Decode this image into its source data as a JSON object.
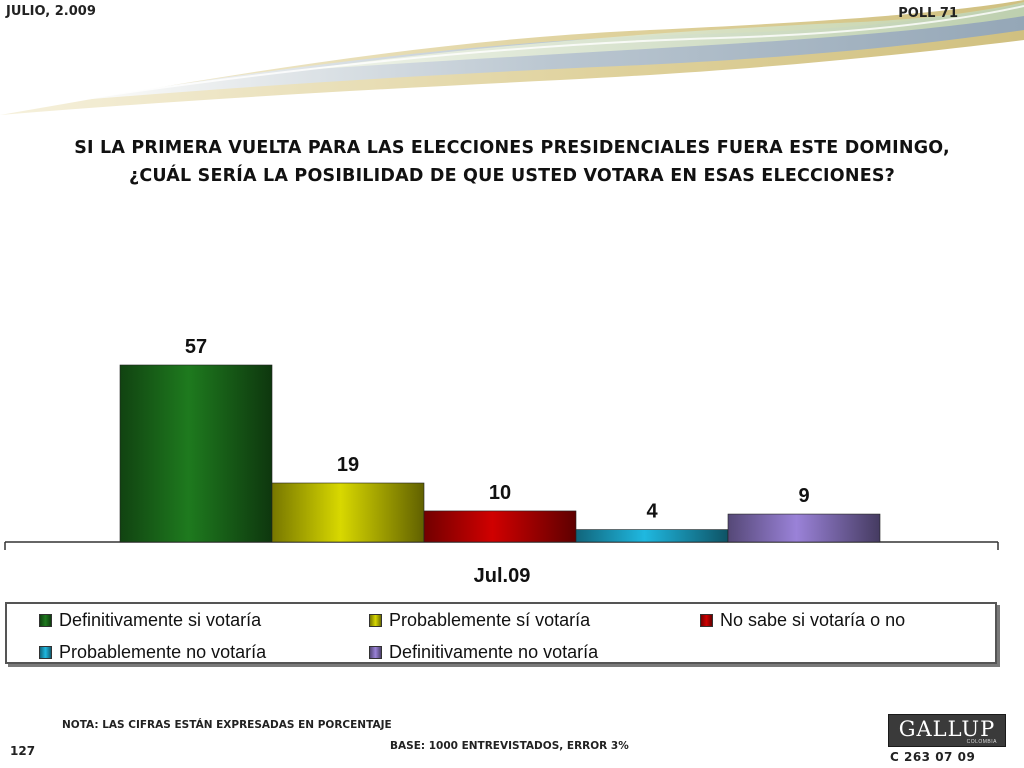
{
  "header": {
    "date": "JULIO, 2.009",
    "poll": "POLL 71"
  },
  "chart_data": {
    "type": "bar",
    "title": "SI LA PRIMERA VUELTA PARA LAS ELECCIONES PRESIDENCIALES FUERA ESTE DOMINGO, ¿CUÁL SERÍA LA POSIBILIDAD DE QUE USTED VOTARA EN ESAS ELECCIONES?",
    "title_lines": [
      "SI LA PRIMERA VUELTA PARA LAS ELECCIONES PRESIDENCIALES FUERA ESTE DOMINGO,",
      "¿CUÁL SERÍA LA POSIBILIDAD DE QUE USTED VOTARA EN ESAS ELECCIONES?"
    ],
    "categories": [
      "Jul.09"
    ],
    "series": [
      {
        "name": "Definitivamente si votaría",
        "values": [
          57
        ],
        "color": "#1e7a1e"
      },
      {
        "name": "Probablemente sí votaría",
        "values": [
          19
        ],
        "color": "#d8d800"
      },
      {
        "name": "No sabe si votaría o no",
        "values": [
          10
        ],
        "color": "#d00000"
      },
      {
        "name": "Probablemente no votaría",
        "values": [
          4
        ],
        "color": "#1fb8e0"
      },
      {
        "name": "Definitivamente no votaría",
        "values": [
          9
        ],
        "color": "#9a82d8"
      }
    ],
    "ylim": [
      0,
      60
    ],
    "grid": false,
    "legend_position": "bottom"
  },
  "footer": {
    "note": "NOTA: LAS CIFRAS ESTÁN EXPRESADAS EN PORCENTAJE",
    "base": "BASE: 1000 ENTREVISTADOS, ERROR 3%",
    "page_number": "127",
    "code": "C 263 07 09",
    "logo_text": "GALLUP",
    "logo_sub": "COLOMBIA"
  },
  "colors": {
    "wave_gold": "#d9c98a",
    "wave_blue": "#9fb2c8",
    "wave_green": "#c9d8b8"
  }
}
